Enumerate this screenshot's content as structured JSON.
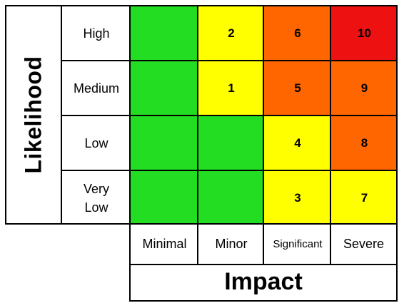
{
  "y_axis_label": "Likelihood",
  "x_axis_label": "Impact",
  "colors": {
    "green": "#22dd22",
    "yellow": "#ffff00",
    "orange": "#ff6600",
    "red": "#ee1111"
  },
  "rows": [
    {
      "label": "High",
      "cells": [
        {
          "value": "",
          "color": "green"
        },
        {
          "value": "2",
          "color": "yellow"
        },
        {
          "value": "6",
          "color": "orange"
        },
        {
          "value": "10",
          "color": "red"
        }
      ]
    },
    {
      "label": "Medium",
      "cells": [
        {
          "value": "",
          "color": "green"
        },
        {
          "value": "1",
          "color": "yellow"
        },
        {
          "value": "5",
          "color": "orange"
        },
        {
          "value": "9",
          "color": "orange"
        }
      ]
    },
    {
      "label": "Low",
      "cells": [
        {
          "value": "",
          "color": "green"
        },
        {
          "value": "",
          "color": "green"
        },
        {
          "value": "4",
          "color": "yellow"
        },
        {
          "value": "8",
          "color": "orange"
        }
      ]
    },
    {
      "label": "Very\nLow",
      "cells": [
        {
          "value": "",
          "color": "green"
        },
        {
          "value": "",
          "color": "green"
        },
        {
          "value": "3",
          "color": "yellow"
        },
        {
          "value": "7",
          "color": "yellow"
        }
      ]
    }
  ],
  "columns": [
    "Minimal",
    "Minor",
    "Significant",
    "Severe"
  ]
}
